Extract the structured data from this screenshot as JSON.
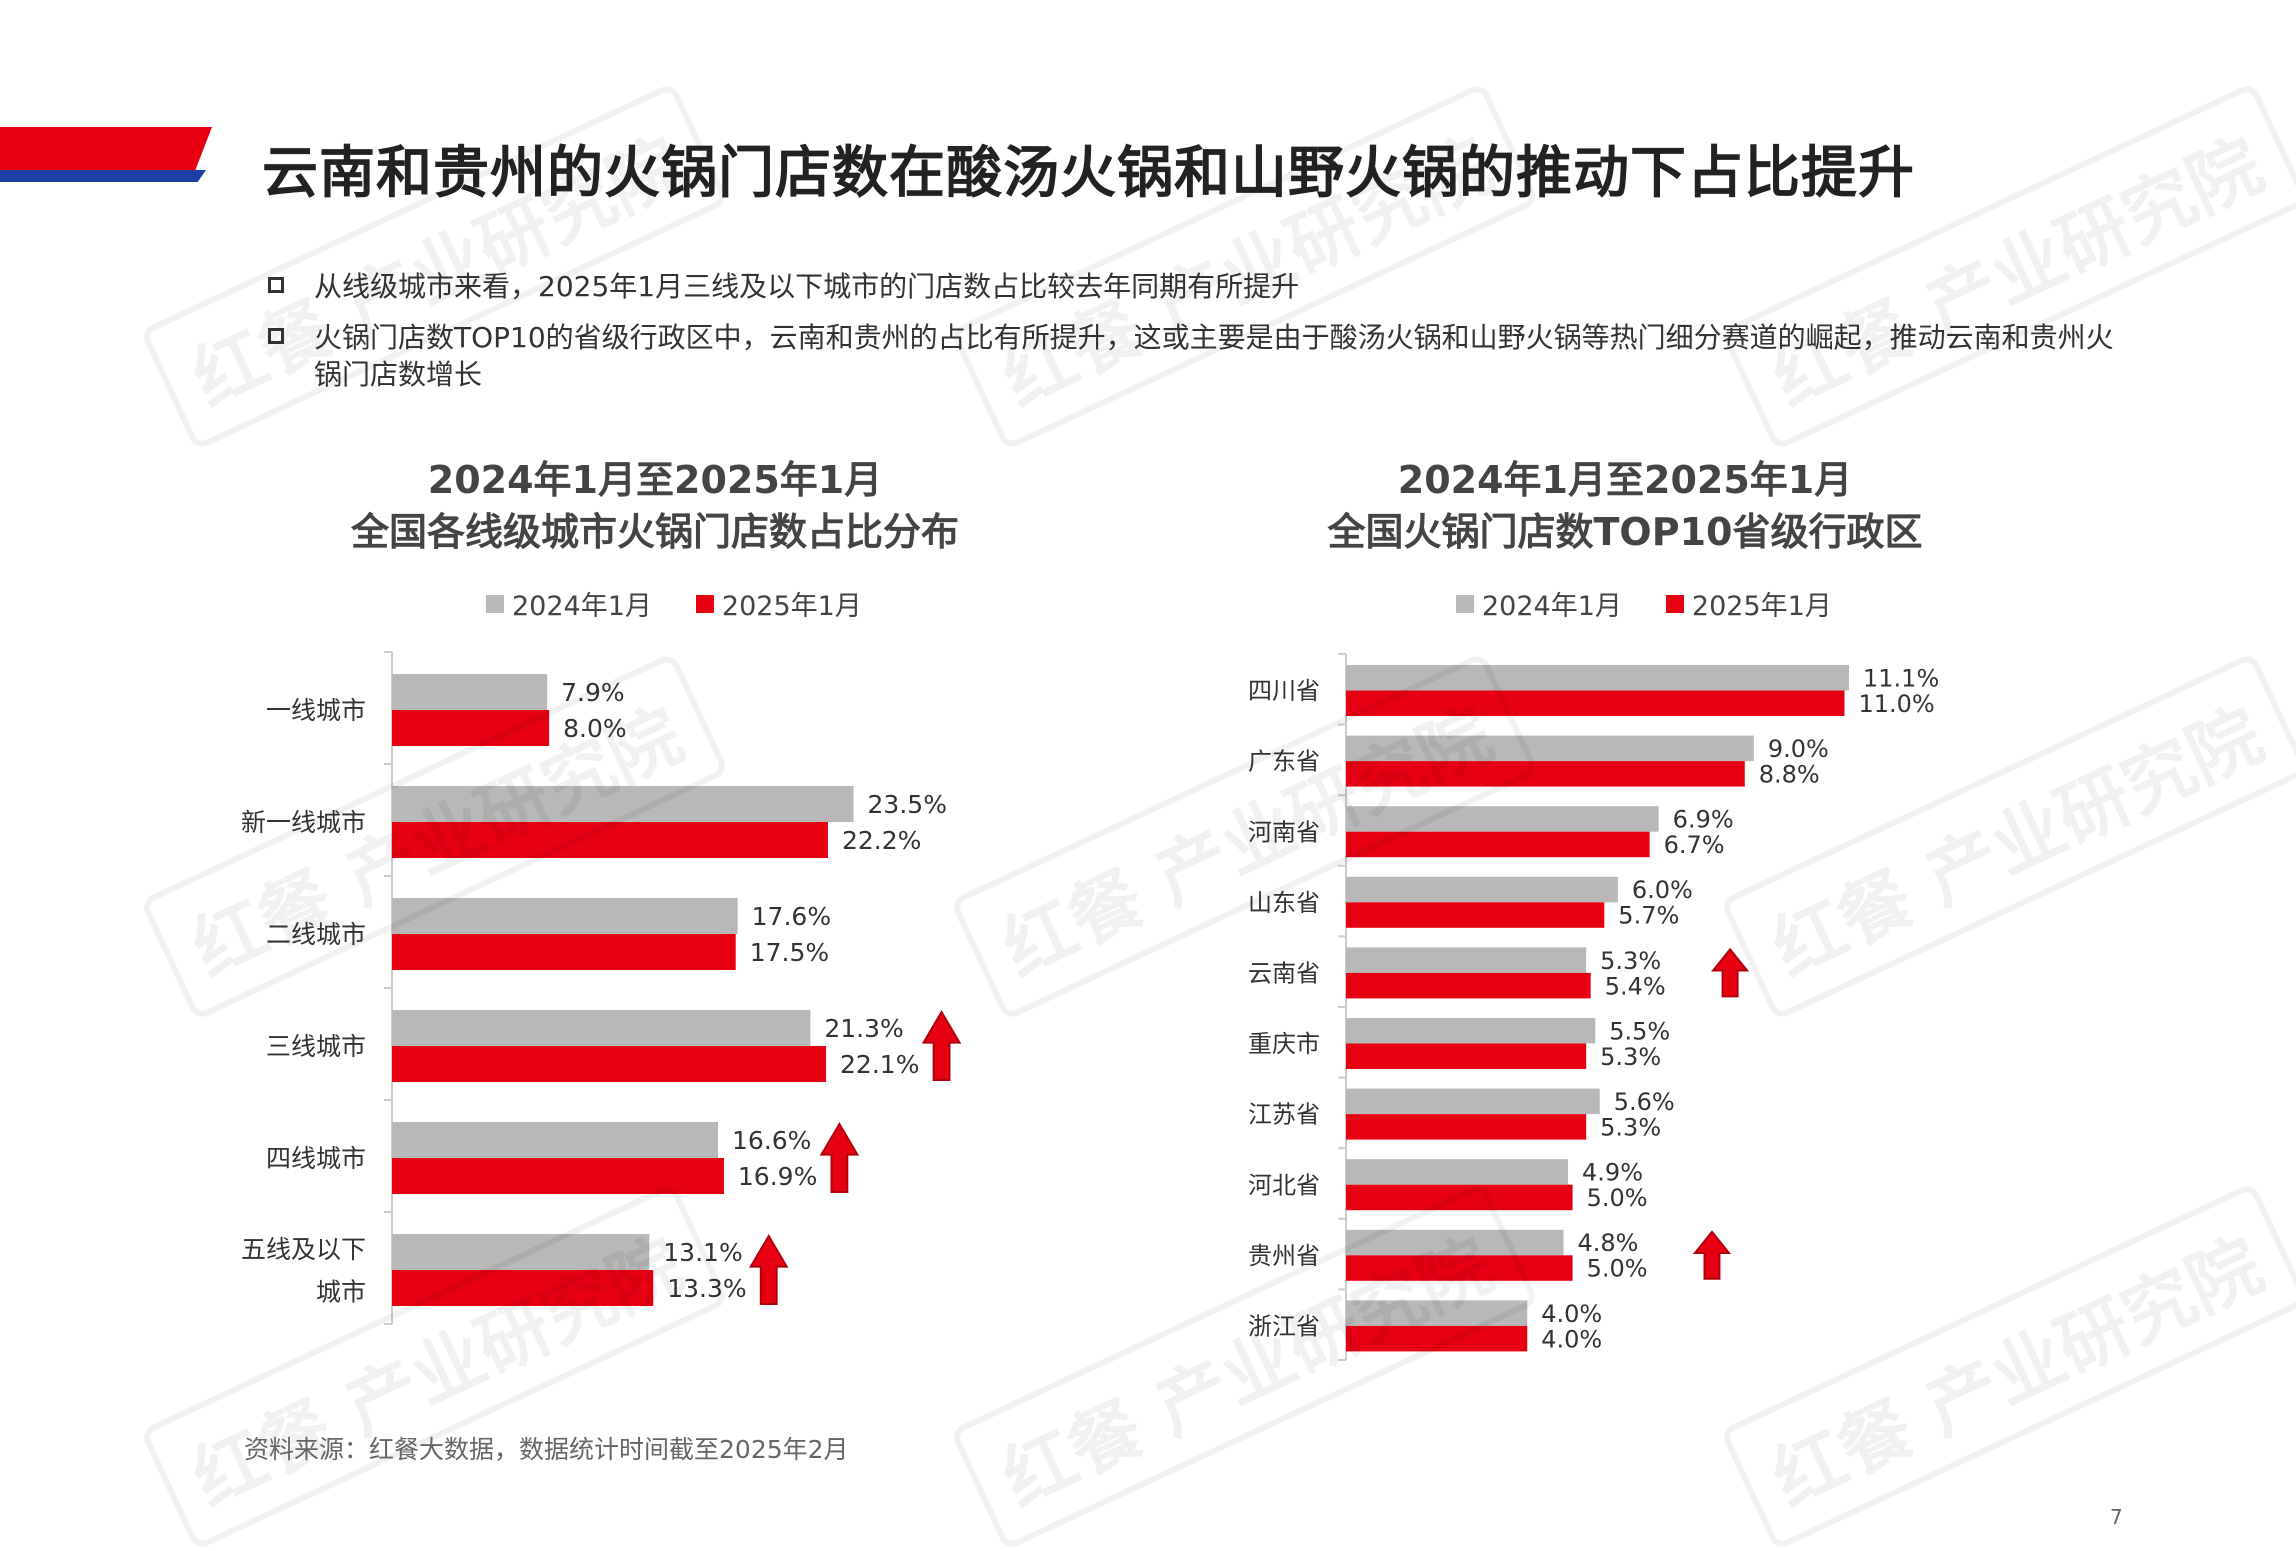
{
  "header": {
    "title": "云南和贵州的火锅门店数在酸汤火锅和山野火锅的推动下占比提升",
    "accent_colors": {
      "red": "#e60012",
      "blue": "#1f3fa8"
    }
  },
  "bullets": [
    "从线级城市来看，2025年1月三线及以下城市的门店数占比较去年同期有所提升",
    "火锅门店数TOP10的省级行政区中，云南和贵州的占比有所提升，这或主要是由于酸汤火锅和山野火锅等热门细分赛道的崛起，推动云南和贵州火锅门店数增长"
  ],
  "watermark": "红餐 产业研究院",
  "source": "资料来源：红餐大数据，数据统计时间截至2025年2月",
  "page_number": "7",
  "colors": {
    "series_2024": "#b8b8b8",
    "series_2025": "#e60012",
    "arrow": "#e60012",
    "axis": "#cccccc"
  },
  "chart_data": [
    {
      "type": "bar",
      "orientation": "horizontal",
      "title_line1": "2024年1月至2025年1月",
      "title_line2": "全国各线级城市火锅门店数占比分布",
      "categories": [
        "一线城市",
        "新一线城市",
        "二线城市",
        "三线城市",
        "四线城市",
        "五线及以下城市"
      ],
      "category_lines": [
        [
          "一线城市"
        ],
        [
          "新一线城市"
        ],
        [
          "二线城市"
        ],
        [
          "三线城市"
        ],
        [
          "四线城市"
        ],
        [
          "五线及以下",
          "城市"
        ]
      ],
      "series": [
        {
          "name": "2024年1月",
          "values": [
            7.9,
            23.5,
            17.6,
            21.3,
            16.6,
            13.1
          ],
          "labels": [
            "7.9%",
            "23.5%",
            "17.6%",
            "21.3%",
            "16.6%",
            "13.1%"
          ]
        },
        {
          "name": "2025年1月",
          "values": [
            8.0,
            22.2,
            17.5,
            22.1,
            16.9,
            13.3
          ],
          "labels": [
            "8.0%",
            "22.2%",
            "17.5%",
            "22.1%",
            "16.9%",
            "13.3%"
          ]
        }
      ],
      "up_arrows": [
        false,
        false,
        false,
        true,
        true,
        true
      ],
      "xlim": [
        0,
        25
      ]
    },
    {
      "type": "bar",
      "orientation": "horizontal",
      "title_line1": "2024年1月至2025年1月",
      "title_line2": "全国火锅门店数TOP10省级行政区",
      "categories": [
        "四川省",
        "广东省",
        "河南省",
        "山东省",
        "云南省",
        "重庆市",
        "江苏省",
        "河北省",
        "贵州省",
        "浙江省"
      ],
      "category_lines": [
        [
          "四川省"
        ],
        [
          "广东省"
        ],
        [
          "河南省"
        ],
        [
          "山东省"
        ],
        [
          "云南省"
        ],
        [
          "重庆市"
        ],
        [
          "江苏省"
        ],
        [
          "河北省"
        ],
        [
          "贵州省"
        ],
        [
          "浙江省"
        ]
      ],
      "series": [
        {
          "name": "2024年1月",
          "values": [
            11.1,
            9.0,
            6.9,
            6.0,
            5.3,
            5.5,
            5.6,
            4.9,
            4.8,
            4.0
          ],
          "labels": [
            "11.1%",
            "9.0%",
            "6.9%",
            "6.0%",
            "5.3%",
            "5.5%",
            "5.6%",
            "4.9%",
            "4.8%",
            "4.0%"
          ]
        },
        {
          "name": "2025年1月",
          "values": [
            11.0,
            8.8,
            6.7,
            5.7,
            5.4,
            5.3,
            5.3,
            5.0,
            5.0,
            4.0
          ],
          "labels": [
            "11.0%",
            "8.8%",
            "6.7%",
            "5.7%",
            "5.4%",
            "5.3%",
            "5.3%",
            "5.0%",
            "5.0%",
            "4.0%"
          ]
        }
      ],
      "up_arrows": [
        false,
        false,
        false,
        false,
        true,
        false,
        false,
        false,
        true,
        false
      ],
      "xlim": [
        0,
        11.1
      ]
    }
  ]
}
